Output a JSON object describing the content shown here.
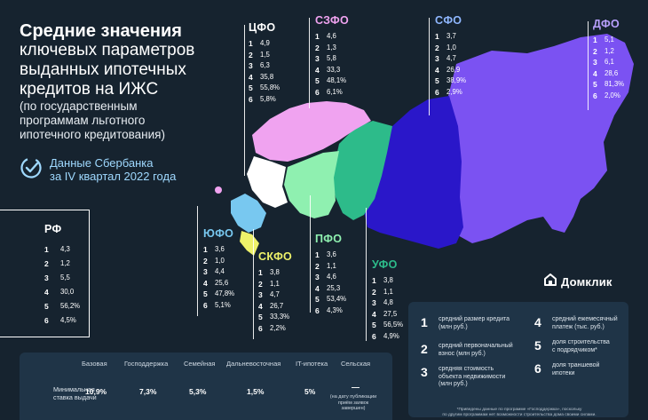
{
  "title": {
    "bold": "Средние значения",
    "lines": [
      "ключевых параметров",
      "выданных ипотечных",
      "кредитов на ИЖС"
    ],
    "sub": [
      "(по государственным",
      "программам льготного",
      "ипотечного кредитования)"
    ]
  },
  "source": [
    "Данные Сбербанка",
    "за IV квартал 2022 года"
  ],
  "logo": "Домклик",
  "colors": {
    "background": "#16232f",
    "cfo": "#ffffff",
    "szfo": "#f0a3f0",
    "sfo": "#2a17c9",
    "dfo": "#7b52f2",
    "yufo": "#78c8f0",
    "skfo": "#eef26a",
    "pfo": "#8ff0b0",
    "ufo": "#2dbb8a"
  },
  "regions": {
    "cfo": {
      "name": "ЦФО",
      "values": [
        "4,9",
        "1,5",
        "6,3",
        "35,8",
        "55,8%",
        "5,8%"
      ]
    },
    "szfo": {
      "name": "СЗФО",
      "values": [
        "4,6",
        "1,3",
        "5,8",
        "33,3",
        "48,1%",
        "6,1%"
      ]
    },
    "sfo": {
      "name": "СФО",
      "values": [
        "3,7",
        "1,0",
        "4,7",
        "26,9",
        "38,9%",
        "2,9%"
      ]
    },
    "dfo": {
      "name": "ДФО",
      "values": [
        "5,1",
        "1,2",
        "6,1",
        "28,6",
        "81,3%",
        "2,0%"
      ]
    },
    "yufo": {
      "name": "ЮФО",
      "values": [
        "3,6",
        "1,0",
        "4,4",
        "25,6",
        "47,8%",
        "5,1%"
      ]
    },
    "skfo": {
      "name": "СКФО",
      "values": [
        "3,8",
        "1,1",
        "4,7",
        "26,7",
        "33,3%",
        "2,2%"
      ]
    },
    "pfo": {
      "name": "ПФО",
      "values": [
        "3,6",
        "1,1",
        "4,6",
        "25,3",
        "53,4%",
        "4,3%"
      ]
    },
    "ufo": {
      "name": "УФО",
      "values": [
        "3,8",
        "1,1",
        "4,8",
        "27,5",
        "56,5%",
        "4,9%"
      ]
    },
    "rf": {
      "name": "РФ",
      "values": [
        "4,3",
        "1,2",
        "5,5",
        "30,0",
        "56,2%",
        "4,5%"
      ]
    }
  },
  "row_numbers": [
    "1",
    "2",
    "3",
    "4",
    "5",
    "6"
  ],
  "legend": [
    {
      "n": "1",
      "text": [
        "средний размер кредита",
        "(млн руб.)"
      ]
    },
    {
      "n": "2",
      "text": [
        "средний первоначальный",
        "взнос (млн руб.)"
      ]
    },
    {
      "n": "3",
      "text": [
        "средняя стоимость",
        "объекта недвижимости",
        "(млн руб.)"
      ]
    },
    {
      "n": "4",
      "text": [
        "средний ежемесячный",
        "платеж (тыс. руб.)"
      ]
    },
    {
      "n": "5",
      "text": [
        "доля строительства",
        "с подрядчиком*"
      ]
    },
    {
      "n": "6",
      "text": [
        "доля траншевой",
        "ипотеки"
      ]
    }
  ],
  "legend_note": [
    "*Приведены данные по программе «Господдержка», поскольку",
    "по другим программам нет возможности строительства дома своими силами."
  ],
  "rates_table": {
    "headers": [
      "Базовая",
      "Господдержка",
      "Семейная",
      "Дальневосточная",
      "IT-ипотека",
      "Сельская"
    ],
    "row_label": [
      "Минимальная",
      "ставка выдачи"
    ],
    "values": [
      "10,9%",
      "7,3%",
      "5,3%",
      "1,5%",
      "5%"
    ],
    "dash": "—",
    "note": [
      "(на дату публикации",
      "приём заявок",
      "завершен)"
    ]
  }
}
